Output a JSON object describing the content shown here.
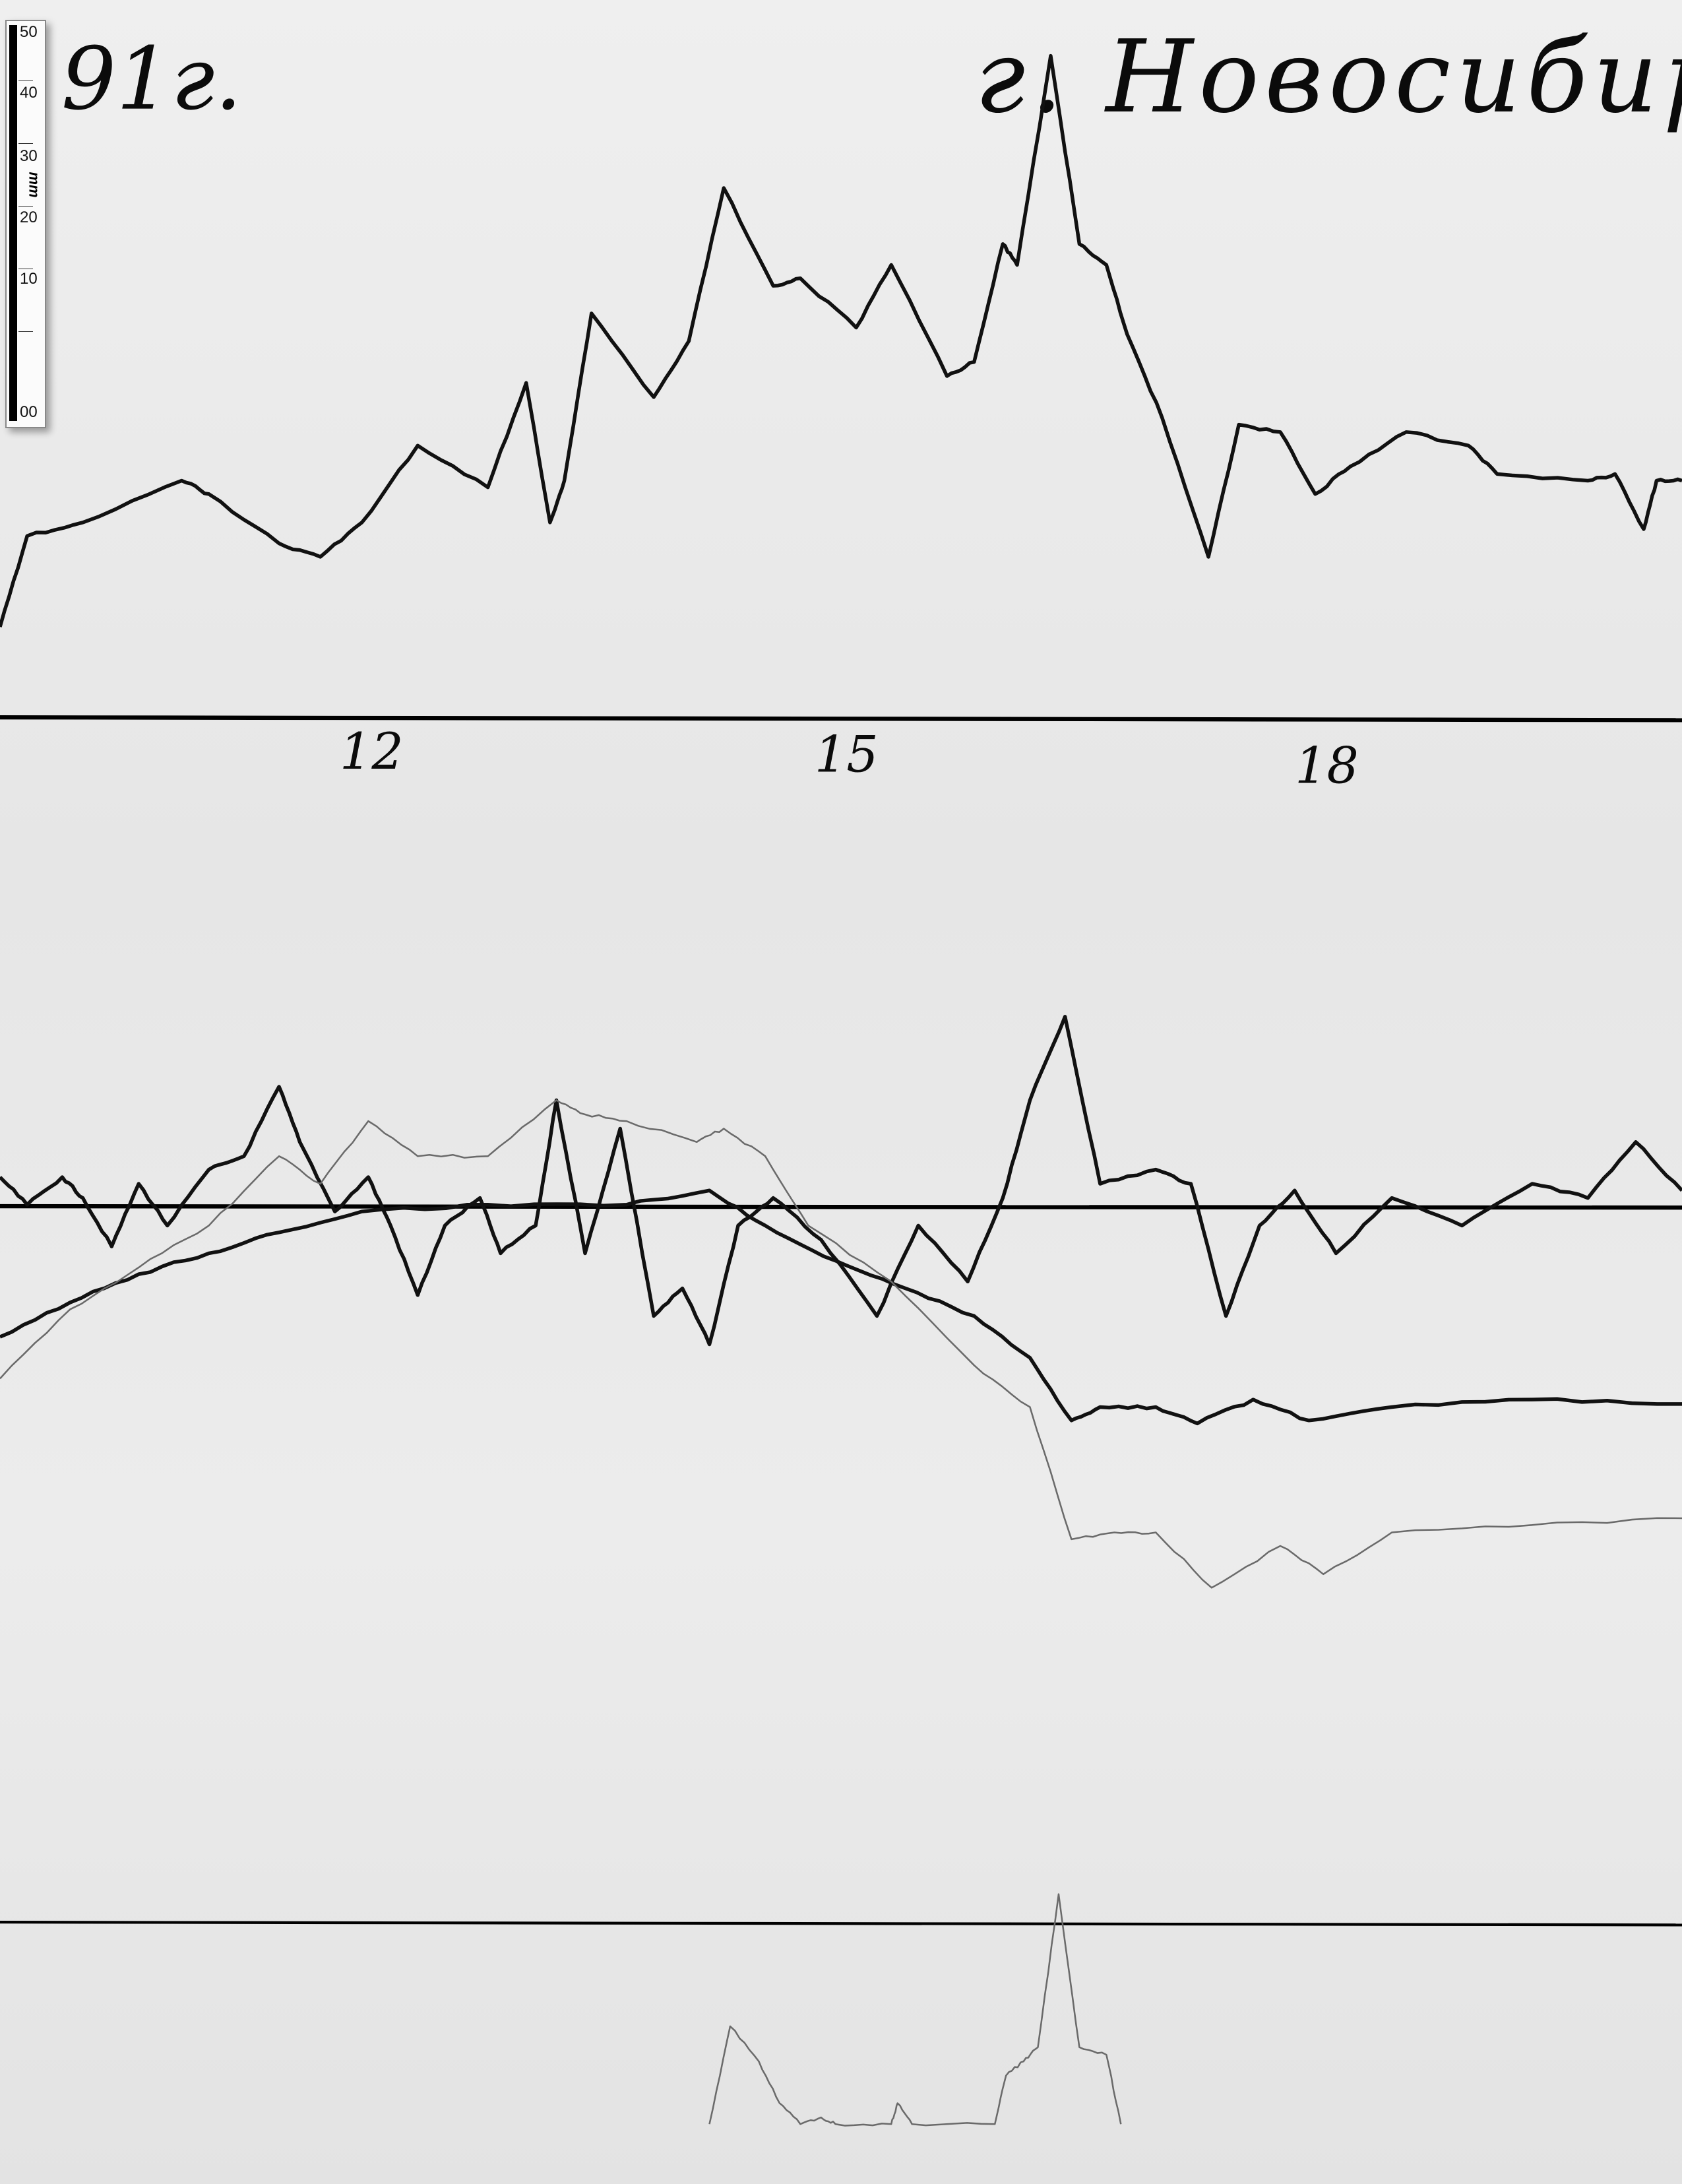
{
  "header": {
    "year_note": "91г.",
    "city_note": "г. Новосибирск"
  },
  "scale_bar": {
    "unit": "mm",
    "labels": [
      "50",
      "40",
      "30",
      "20",
      "10",
      "00"
    ]
  },
  "chart_data": {
    "type": "line",
    "title": "",
    "xlabel": "",
    "ylabel": "",
    "x_tick_labels": [
      "12",
      "15",
      "18"
    ],
    "x_ticks": [
      12,
      15,
      18
    ],
    "xlim": [
      9.73,
      20.28
    ],
    "grid": false,
    "colors": {
      "ink": "#111111",
      "faint": "#6a6a6a",
      "paper": "#ececec"
    },
    "panels": [
      {
        "series": [
          {
            "points": [
              [
                9.73,
                12.1
              ],
              [
                9.9,
                24.3
              ],
              [
                10.25,
                26.1
              ],
              [
                10.87,
                31.7
              ],
              [
                11.04,
                29.9
              ],
              [
                11.48,
                23.3
              ],
              [
                11.74,
                21.5
              ],
              [
                12.0,
                26.1
              ],
              [
                12.35,
                36.4
              ],
              [
                12.79,
                30.8
              ],
              [
                13.03,
                44.8
              ],
              [
                13.18,
                26.1
              ],
              [
                13.27,
                31.7
              ],
              [
                13.44,
                54.1
              ],
              [
                13.83,
                42.9
              ],
              [
                14.05,
                50.4
              ],
              [
                14.27,
                70.9
              ],
              [
                14.58,
                57.8
              ],
              [
                14.75,
                58.8
              ],
              [
                15.1,
                52.2
              ],
              [
                15.32,
                60.6
              ],
              [
                15.67,
                45.7
              ],
              [
                15.84,
                47.6
              ],
              [
                16.02,
                63.4
              ],
              [
                16.11,
                60.6
              ],
              [
                16.32,
                88.6
              ],
              [
                16.5,
                63.4
              ],
              [
                16.67,
                60.6
              ],
              [
                16.8,
                51.3
              ],
              [
                17.02,
                40.1
              ],
              [
                17.31,
                21.5
              ],
              [
                17.5,
                39.2
              ],
              [
                17.76,
                38.2
              ],
              [
                17.98,
                29.9
              ],
              [
                18.2,
                33.6
              ],
              [
                18.55,
                38.2
              ],
              [
                18.94,
                36.4
              ],
              [
                19.12,
                32.6
              ],
              [
                19.69,
                31.7
              ],
              [
                19.86,
                32.6
              ],
              [
                20.04,
                25.2
              ],
              [
                20.12,
                31.7
              ],
              [
                20.28,
                31.7
              ]
            ],
            "style": "ink"
          }
        ]
      },
      {
        "series": [
          {
            "points": [
              [
                9.73,
                3.9
              ],
              [
                9.9,
                0.2
              ],
              [
                10.12,
                3.9
              ],
              [
                10.25,
                1.1
              ],
              [
                10.43,
                -5.4
              ],
              [
                10.6,
                3.0
              ],
              [
                10.78,
                -2.6
              ],
              [
                11.04,
                4.9
              ],
              [
                11.26,
                6.7
              ],
              [
                11.48,
                16.0
              ],
              [
                11.61,
                8.6
              ],
              [
                11.83,
                -0.7
              ],
              [
                12.04,
                3.9
              ],
              [
                12.18,
                -2.6
              ],
              [
                12.35,
                -11.9
              ],
              [
                12.52,
                -2.6
              ],
              [
                12.74,
                1.1
              ],
              [
                12.87,
                -6.3
              ],
              [
                13.09,
                -2.6
              ],
              [
                13.22,
                14.2
              ],
              [
                13.4,
                -6.3
              ],
              [
                13.62,
                10.4
              ],
              [
                13.83,
                -14.7
              ],
              [
                14.01,
                -11.0
              ],
              [
                14.18,
                -18.5
              ],
              [
                14.36,
                -2.6
              ],
              [
                14.58,
                1.1
              ],
              [
                14.88,
                -4.5
              ],
              [
                15.23,
                -14.7
              ],
              [
                15.49,
                -2.6
              ],
              [
                15.8,
                -10.1
              ],
              [
                16.02,
                1.1
              ],
              [
                16.19,
                14.2
              ],
              [
                16.41,
                25.4
              ],
              [
                16.63,
                3.0
              ],
              [
                16.98,
                4.9
              ],
              [
                17.2,
                3.0
              ],
              [
                17.42,
                -14.7
              ],
              [
                17.63,
                -2.6
              ],
              [
                17.85,
                2.1
              ],
              [
                18.11,
                -6.3
              ],
              [
                18.46,
                1.1
              ],
              [
                18.9,
                -2.6
              ],
              [
                19.34,
                3.0
              ],
              [
                19.69,
                1.1
              ],
              [
                19.99,
                8.6
              ],
              [
                20.28,
                2.1
              ]
            ],
            "style": "ink"
          },
          {
            "points": [
              [
                9.73,
                -17.5
              ],
              [
                10.17,
                -12.9
              ],
              [
                10.6,
                -9.1
              ],
              [
                11.04,
                -6.3
              ],
              [
                11.48,
                -3.5
              ],
              [
                12.0,
                -0.7
              ],
              [
                12.79,
                0.2
              ],
              [
                13.66,
                0.2
              ],
              [
                14.18,
                2.1
              ],
              [
                14.53,
                -2.6
              ],
              [
                14.97,
                -7.3
              ],
              [
                15.41,
                -11.0
              ],
              [
                15.84,
                -14.7
              ],
              [
                16.19,
                -20.3
              ],
              [
                16.45,
                -28.7
              ],
              [
                16.63,
                -26.9
              ],
              [
                16.98,
                -26.9
              ],
              [
                17.24,
                -29.1
              ],
              [
                17.59,
                -25.9
              ],
              [
                17.94,
                -28.7
              ],
              [
                18.46,
                -26.9
              ],
              [
                19.34,
                -25.9
              ],
              [
                20.28,
                -26.5
              ]
            ],
            "style": "ink"
          },
          {
            "points": [
              [
                9.73,
                -23.1
              ],
              [
                10.17,
                -13.8
              ],
              [
                10.6,
                -8.2
              ],
              [
                11.04,
                -2.6
              ],
              [
                11.48,
                6.7
              ],
              [
                11.74,
                3.0
              ],
              [
                12.04,
                11.4
              ],
              [
                12.35,
                6.7
              ],
              [
                12.79,
                6.7
              ],
              [
                13.22,
                14.2
              ],
              [
                13.4,
                12.3
              ],
              [
                13.66,
                11.4
              ],
              [
                14.1,
                8.6
              ],
              [
                14.27,
                10.4
              ],
              [
                14.53,
                6.7
              ],
              [
                14.8,
                -2.6
              ],
              [
                15.32,
                -10.1
              ],
              [
                15.84,
                -21.3
              ],
              [
                16.19,
                -26.9
              ],
              [
                16.45,
                -44.6
              ],
              [
                16.72,
                -43.7
              ],
              [
                16.98,
                -43.7
              ],
              [
                17.33,
                -51.1
              ],
              [
                17.76,
                -45.5
              ],
              [
                18.03,
                -49.3
              ],
              [
                18.46,
                -43.7
              ],
              [
                19.34,
                -42.7
              ],
              [
                20.28,
                -41.8
              ]
            ],
            "style": "faint"
          }
        ]
      },
      {
        "series": [
          {
            "points": [
              [
                14.18,
                0
              ],
              [
                14.31,
                13.1
              ],
              [
                14.49,
                8.4
              ],
              [
                14.62,
                2.8
              ],
              [
                14.75,
                0
              ],
              [
                14.88,
                0.9
              ],
              [
                14.97,
                0
              ],
              [
                15.32,
                0
              ],
              [
                15.36,
                2.8
              ],
              [
                15.45,
                0
              ],
              [
                15.97,
                0
              ],
              [
                16.04,
                6.5
              ],
              [
                16.15,
                8.4
              ],
              [
                16.24,
                10.3
              ],
              [
                16.37,
                30.8
              ],
              [
                16.5,
                10.3
              ],
              [
                16.67,
                9.3
              ],
              [
                16.76,
                0
              ]
            ],
            "style": "faint"
          }
        ]
      }
    ]
  }
}
